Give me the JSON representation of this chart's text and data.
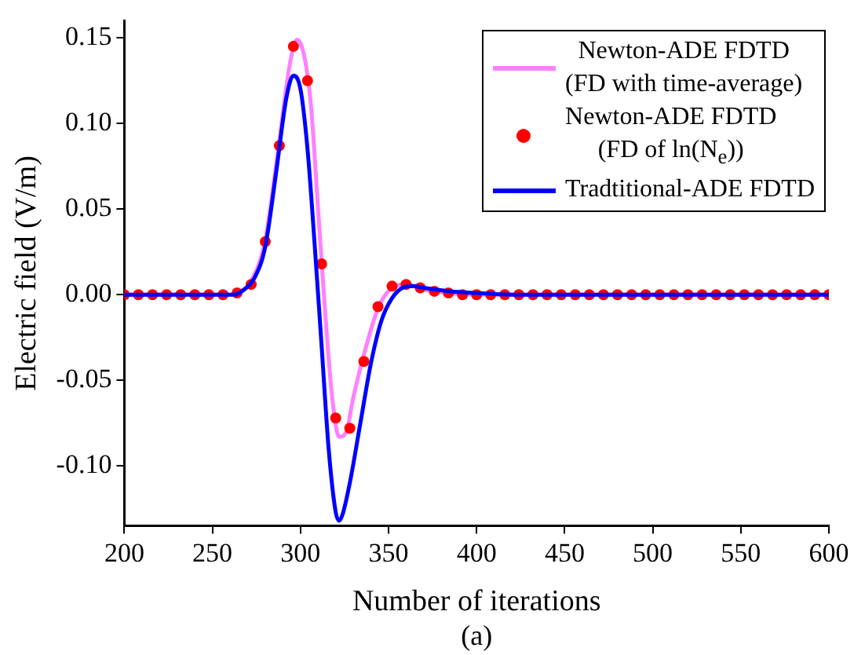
{
  "chart_data": {
    "type": "line",
    "xlabel": "Number of iterations",
    "ylabel": "Electric field (V/m)",
    "annotations": [
      "(a)"
    ],
    "xlim": [
      200,
      600
    ],
    "xticks": [
      200,
      250,
      300,
      350,
      400,
      450,
      500,
      550,
      600
    ],
    "ylim": [
      -0.135,
      0.16
    ],
    "yticks": [
      {
        "value": -0.1,
        "label": "-0.10"
      },
      {
        "value": -0.05,
        "label": "-0.05"
      },
      {
        "value": 0,
        "label": "0.00"
      },
      {
        "value": 0.05,
        "label": "0.05"
      },
      {
        "value": 0.1,
        "label": "0.10"
      },
      {
        "value": 0.15,
        "label": "0.15"
      }
    ],
    "grid": false,
    "legend": "top right",
    "series": [
      {
        "name": "Newton-ADE FDTD\n(FD with time-average)",
        "type": "line",
        "color": "#ff80ff",
        "marker": "none",
        "x": [
          200,
          260,
          266,
          272,
          280,
          288,
          294,
          298,
          302,
          306,
          310,
          314,
          318,
          322,
          326,
          330,
          336,
          344,
          352,
          360,
          370,
          385,
          400,
          600
        ],
        "values": [
          0,
          0,
          0.002,
          0.008,
          0.032,
          0.09,
          0.135,
          0.149,
          0.14,
          0.11,
          0.05,
          -0.01,
          -0.06,
          -0.083,
          -0.08,
          -0.06,
          -0.035,
          -0.008,
          0.004,
          0.006,
          0.003,
          0.001,
          0,
          0
        ]
      },
      {
        "name": "Newton-ADE FDTD\n(FD of ln(N$_{e}$))",
        "type": "scatter",
        "color": "#ff0000",
        "marker": "circle",
        "x": [
          200,
          208,
          216,
          224,
          232,
          240,
          248,
          256,
          264,
          272,
          280,
          288,
          296,
          304,
          312,
          320,
          328,
          336,
          344,
          352,
          360,
          368,
          376,
          384,
          392,
          400,
          408,
          416,
          424,
          432,
          440,
          448,
          456,
          464,
          472,
          480,
          488,
          496,
          504,
          512,
          520,
          528,
          536,
          544,
          552,
          560,
          568,
          576,
          584,
          592,
          600
        ],
        "values": [
          0,
          0,
          0,
          0,
          0,
          0,
          0,
          0,
          0.001,
          0.006,
          0.031,
          0.087,
          0.145,
          0.125,
          0.018,
          -0.072,
          -0.078,
          -0.039,
          -0.007,
          0.005,
          0.006,
          0.004,
          0.002,
          0.001,
          0,
          0,
          0,
          0,
          0,
          0,
          0,
          0,
          0,
          0,
          0,
          0,
          0,
          0,
          0,
          0,
          0,
          0,
          0,
          0,
          0,
          0,
          0,
          0,
          0,
          0,
          0
        ]
      },
      {
        "name": "Tradtitional-ADE FDTD",
        "type": "line",
        "color": "#0000ff",
        "marker": "none",
        "x": [
          200,
          262,
          268,
          274,
          280,
          286,
          292,
          296,
          300,
          304,
          308,
          312,
          316,
          320,
          322,
          324,
          328,
          334,
          340,
          346,
          352,
          358,
          364,
          370,
          385,
          400,
          420,
          600
        ],
        "values": [
          0,
          0,
          0.003,
          0.01,
          0.028,
          0.07,
          0.115,
          0.128,
          0.12,
          0.085,
          0.03,
          -0.03,
          -0.09,
          -0.127,
          -0.132,
          -0.128,
          -0.11,
          -0.075,
          -0.04,
          -0.015,
          -0.002,
          0.004,
          0.005,
          0.004,
          0.002,
          0.001,
          0,
          0
        ]
      }
    ]
  }
}
